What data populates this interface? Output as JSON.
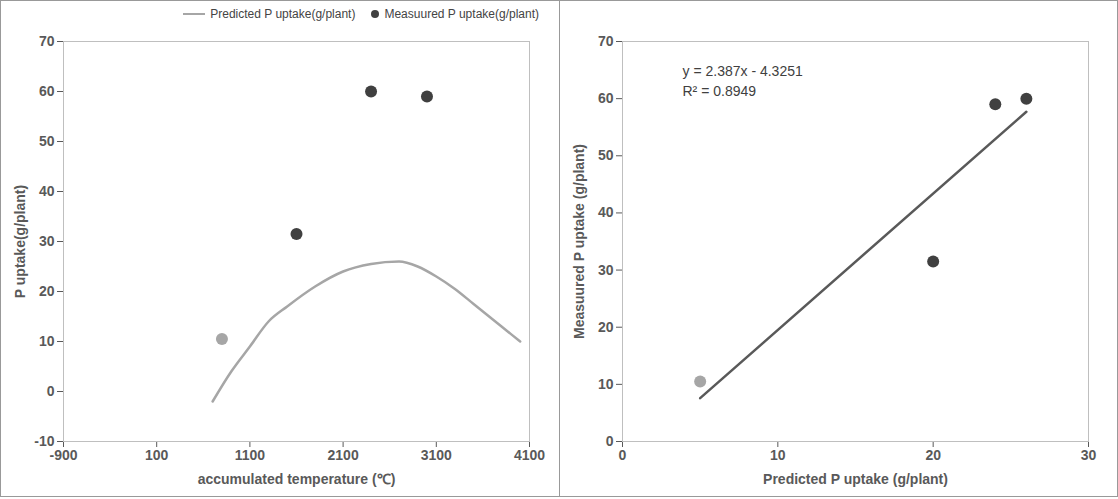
{
  "chart_data": [
    {
      "type": "line",
      "x_label": "accumulated temperature (℃)",
      "y_label": "P uptake(g/plant)",
      "xlim": [
        -900,
        4100
      ],
      "xticks": [
        -900,
        100,
        1100,
        2100,
        3100,
        4100
      ],
      "ylim": [
        -10,
        70
      ],
      "yticks": [
        -10,
        0,
        10,
        20,
        30,
        40,
        50,
        60,
        70
      ],
      "grid": false,
      "legend": "top-right",
      "series": [
        {
          "name": "Predicted P uptake(g/plant)",
          "type": "line",
          "color": "#a6a6a6",
          "x": [
            700,
            900,
            1100,
            1300,
            1500,
            1800,
            2100,
            2400,
            2700,
            2900,
            3100,
            3300,
            3500,
            3800,
            4000
          ],
          "values": [
            -2,
            4,
            9,
            14,
            17,
            21,
            24,
            25.5,
            26,
            25,
            23,
            20.5,
            17.5,
            13,
            10
          ]
        },
        {
          "name": "Measuured P uptake(g/plant)",
          "type": "scatter",
          "colors": [
            "#a6a6a6",
            "#404040",
            "#404040",
            "#404040"
          ],
          "x": [
            800,
            1600,
            2400,
            3000
          ],
          "values": [
            10.5,
            31.5,
            60,
            59
          ]
        }
      ]
    },
    {
      "type": "scatter",
      "x_label": "Predicted P uptake (g/plant)",
      "y_label": "Measuured P uptake (g/plant)",
      "xlim": [
        0,
        30
      ],
      "xticks": [
        0,
        10,
        20,
        30
      ],
      "ylim": [
        0,
        70
      ],
      "yticks": [
        0,
        10,
        20,
        30,
        40,
        50,
        60,
        70
      ],
      "grid": false,
      "annotations": [
        "y = 2.387x - 4.3251",
        "R² = 0.8949"
      ],
      "series": [
        {
          "type": "scatter",
          "colors": [
            "#a6a6a6",
            "#404040",
            "#404040",
            "#404040"
          ],
          "x": [
            5,
            20,
            24,
            26
          ],
          "values": [
            10.5,
            31.5,
            59,
            60
          ]
        },
        {
          "type": "line",
          "color": "#595959",
          "x": [
            5,
            26
          ],
          "values": [
            7.6,
            57.7
          ]
        }
      ]
    }
  ]
}
